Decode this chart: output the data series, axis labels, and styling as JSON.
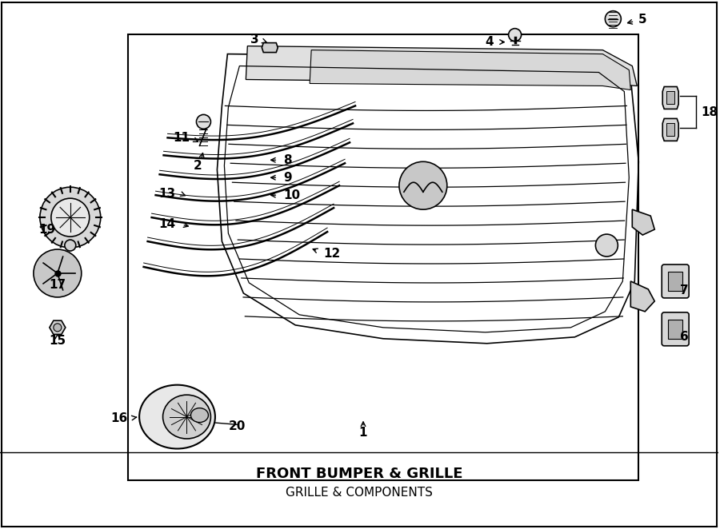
{
  "title": "FRONT BUMPER & GRILLE",
  "subtitle": "GRILLE & COMPONENTS",
  "bg_color": "#ffffff",
  "line_color": "#000000",
  "fig_width": 9.0,
  "fig_height": 6.62
}
